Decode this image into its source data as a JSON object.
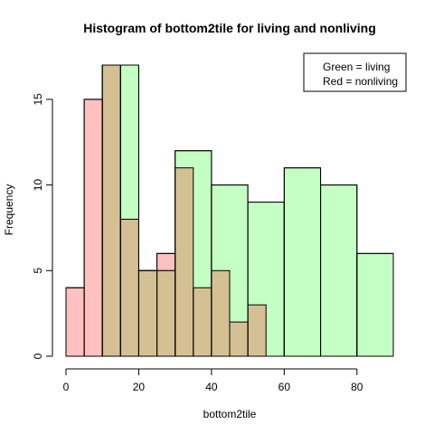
{
  "chart_data": {
    "type": "bar",
    "title": "Histogram of  bottom2tile for living and nonliving",
    "xlabel": "bottom2tile",
    "ylabel": "Frequency",
    "xlim": [
      0,
      90
    ],
    "ylim": [
      0,
      17
    ],
    "x_ticks": [
      "0",
      "20",
      "40",
      "60",
      "80"
    ],
    "y_ticks": [
      "0",
      "5",
      "10",
      "15"
    ],
    "legend_entries": [
      "Green = living",
      "Red =  nonliving"
    ],
    "legend_position": "top-right",
    "overlap_color": "#d4c092",
    "series": [
      {
        "color": "#ffc0c0",
        "bins": [
          {
            "x0": 0,
            "x1": 5,
            "count": 4
          },
          {
            "x0": 5,
            "x1": 10,
            "count": 15
          },
          {
            "x0": 10,
            "x1": 15,
            "count": 17
          },
          {
            "x0": 15,
            "x1": 20,
            "count": 8
          },
          {
            "x0": 20,
            "x1": 25,
            "count": 5
          },
          {
            "x0": 25,
            "x1": 30,
            "count": 6
          },
          {
            "x0": 30,
            "x1": 35,
            "count": 11
          },
          {
            "x0": 35,
            "x1": 40,
            "count": 4
          },
          {
            "x0": 40,
            "x1": 45,
            "count": 5
          },
          {
            "x0": 45,
            "x1": 50,
            "count": 2
          },
          {
            "x0": 50,
            "x1": 55,
            "count": 3
          }
        ]
      },
      {
        "color": "#c4ffc4",
        "bins": [
          {
            "x0": 10,
            "x1": 15,
            "count": 17
          },
          {
            "x0": 15,
            "x1": 20,
            "count": 17
          },
          {
            "x0": 20,
            "x1": 25,
            "count": 5
          },
          {
            "x0": 25,
            "x1": 30,
            "count": 5
          },
          {
            "x0": 30,
            "x1": 40,
            "count": 12
          },
          {
            "x0": 40,
            "x1": 50,
            "count": 10
          },
          {
            "x0": 50,
            "x1": 60,
            "count": 9
          },
          {
            "x0": 60,
            "x1": 70,
            "count": 11
          },
          {
            "x0": 70,
            "x1": 80,
            "count": 10
          },
          {
            "x0": 80,
            "x1": 90,
            "count": 6
          }
        ]
      }
    ]
  }
}
